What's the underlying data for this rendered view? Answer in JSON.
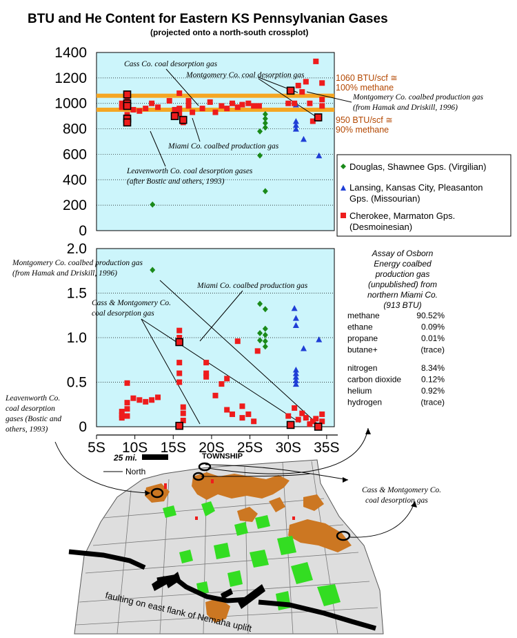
{
  "title": "BTU and He Content for Eastern KS Pennsylvanian Gases",
  "subtitle": "(projected onto a north-south crossplot)",
  "colors": {
    "plot_bg": "#ccf5fb",
    "orange": "#f5a623",
    "virgilian": "#1a8a1a",
    "missourian": "#1f3fd6",
    "desmoinesian": "#ee1c1c",
    "map_orange": "#cc7722",
    "map_green": "#33dd22"
  },
  "chart_data": [
    {
      "type": "scatter",
      "name": "btu",
      "ylim": [
        0,
        1400
      ],
      "xlim": [
        5,
        36
      ],
      "yticks": [
        "0",
        "200",
        "400",
        "600",
        "800",
        "1000",
        "1200",
        "1400"
      ],
      "ytick_values": [
        0,
        200,
        400,
        600,
        800,
        1000,
        1200,
        1400
      ],
      "grid": "dotted",
      "reference_lines": [
        {
          "y": 1060,
          "label": "1060 BTU/scf ≅\n100% methane"
        },
        {
          "y": 950,
          "label": "950 BTU/scf ≅\n90% methane"
        }
      ],
      "series": [
        {
          "name": "Douglas, Shawnee Gps. (Virgilian)",
          "marker": "diamond",
          "points": [
            [
              12.3,
              205
            ],
            [
              26.3,
              780
            ],
            [
              26.3,
              590
            ],
            [
              27,
              915
            ],
            [
              27,
              880
            ],
            [
              27,
              845
            ],
            [
              27,
              810
            ],
            [
              27,
              310
            ]
          ]
        },
        {
          "name": "Lansing, Kansas City, Pleasanton Gps. (Missourian)",
          "marker": "triangle",
          "points": [
            [
              31,
              990
            ],
            [
              31,
              860
            ],
            [
              31,
              830
            ],
            [
              31,
              800
            ],
            [
              32,
              720
            ],
            [
              34,
              590
            ]
          ]
        },
        {
          "name": "Cherokee, Marmaton Gps. (Desmoinesian)",
          "marker": "square",
          "points": [
            [
              8.3,
              1000
            ],
            [
              8.3,
              970
            ],
            [
              9,
              1060
            ],
            [
              9,
              1020
            ],
            [
              9,
              970
            ],
            [
              9,
              910
            ],
            [
              9,
              880
            ],
            [
              9,
              850
            ],
            [
              9.8,
              950
            ],
            [
              10.6,
              940
            ],
            [
              11.4,
              960
            ],
            [
              12.2,
              1000
            ],
            [
              13,
              970
            ],
            [
              14.5,
              1020
            ],
            [
              15.2,
              950
            ],
            [
              15.8,
              1080
            ],
            [
              15.8,
              960
            ],
            [
              15.8,
              920
            ],
            [
              16.3,
              880
            ],
            [
              16.3,
              850
            ],
            [
              17,
              1020
            ],
            [
              17,
              980
            ],
            [
              17.5,
              930
            ],
            [
              18.8,
              960
            ],
            [
              19.8,
              1010
            ],
            [
              20.5,
              930
            ],
            [
              21.3,
              980
            ],
            [
              22,
              960
            ],
            [
              22.7,
              1000
            ],
            [
              23.4,
              970
            ],
            [
              24,
              990
            ],
            [
              24.8,
              1000
            ],
            [
              25.5,
              980
            ],
            [
              26.2,
              980
            ],
            [
              30,
              1000
            ],
            [
              30.3,
              1100
            ],
            [
              30.8,
              1000
            ],
            [
              31.3,
              1140
            ],
            [
              31.8,
              1090
            ],
            [
              32.3,
              1170
            ],
            [
              32.8,
              1000
            ],
            [
              33.2,
              860
            ],
            [
              33.6,
              1330
            ],
            [
              33.9,
              880
            ],
            [
              34.4,
              1160
            ],
            [
              34.4,
              1030
            ],
            [
              34.4,
              980
            ]
          ]
        }
      ],
      "highlighted": [
        [
          9,
          1070
        ],
        [
          9,
          1000
        ],
        [
          9,
          980
        ],
        [
          9,
          880
        ],
        [
          9,
          850
        ],
        [
          15.2,
          900
        ],
        [
          16.3,
          870
        ],
        [
          30.3,
          1100
        ],
        [
          33.9,
          890
        ]
      ],
      "annotations": [
        "Cass Co. coal desorption gas",
        "Montgomery Co. coal desorption gas",
        "Montgomery Co. coalbed production gas",
        "(from Hamak and Driskill, 1996)",
        "Miami Co. coalbed production gas",
        "Leavenworth Co. coal desorption gases",
        "(after Bostic and others, 1993)"
      ]
    },
    {
      "type": "scatter",
      "name": "helium",
      "ylim": [
        0,
        2.0
      ],
      "xlim": [
        5,
        36
      ],
      "yticks": [
        "0",
        "0.5",
        "1.0",
        "1.5",
        "2.0"
      ],
      "ytick_values": [
        0,
        0.5,
        1.0,
        1.5,
        2.0
      ],
      "xticks": [
        "5S",
        "10S",
        "15S",
        "20S",
        "25S",
        "30S",
        "35S"
      ],
      "xtick_values": [
        5,
        10,
        15,
        20,
        25,
        30,
        35
      ],
      "xlabel": "TOWNSHIP",
      "grid": "dotted",
      "series": [
        {
          "name": "Douglas, Shawnee Gps. (Virgilian)",
          "marker": "diamond",
          "points": [
            [
              12.3,
              1.76
            ],
            [
              26.3,
              1.38
            ],
            [
              26.3,
              1.05
            ],
            [
              26.3,
              0.97
            ],
            [
              27,
              1.32
            ],
            [
              27,
              1.1
            ],
            [
              27,
              1.03
            ],
            [
              27,
              0.96
            ],
            [
              27,
              0.9
            ]
          ]
        },
        {
          "name": "Lansing, Kansas City, Pleasanton Gps. (Missourian)",
          "marker": "triangle",
          "points": [
            [
              30.8,
              1.33
            ],
            [
              31,
              1.22
            ],
            [
              31,
              1.14
            ],
            [
              31,
              0.64
            ],
            [
              31,
              0.6
            ],
            [
              31,
              0.56
            ],
            [
              31,
              0.52
            ],
            [
              31,
              0.48
            ],
            [
              32,
              0.88
            ],
            [
              34,
              0.98
            ]
          ]
        },
        {
          "name": "Cherokee, Marmaton Gps. (Desmoinesian)",
          "marker": "square",
          "points": [
            [
              8.3,
              0.17
            ],
            [
              8.3,
              0.13
            ],
            [
              8.3,
              0.1
            ],
            [
              9,
              0.49
            ],
            [
              9,
              0.27
            ],
            [
              9,
              0.2
            ],
            [
              9,
              0.12
            ],
            [
              9.8,
              0.32
            ],
            [
              10.6,
              0.3
            ],
            [
              11.4,
              0.28
            ],
            [
              12.2,
              0.3
            ],
            [
              13,
              0.33
            ],
            [
              15.8,
              1.08
            ],
            [
              15.8,
              1.0
            ],
            [
              15.8,
              0.72
            ],
            [
              15.8,
              0.6
            ],
            [
              15.8,
              0.5
            ],
            [
              16.3,
              0.22
            ],
            [
              16.3,
              0.15
            ],
            [
              16.3,
              0.07
            ],
            [
              19.3,
              0.72
            ],
            [
              19.3,
              0.6
            ],
            [
              19.3,
              0.56
            ],
            [
              20.5,
              0.35
            ],
            [
              21.3,
              0.48
            ],
            [
              22,
              0.54
            ],
            [
              22,
              0.19
            ],
            [
              22.7,
              0.14
            ],
            [
              23.4,
              0.96
            ],
            [
              24,
              0.23
            ],
            [
              24,
              0.1
            ],
            [
              24.8,
              0.14
            ],
            [
              25.5,
              0.06
            ],
            [
              26,
              0.85
            ],
            [
              30,
              0.12
            ],
            [
              30.8,
              0.21
            ],
            [
              31.3,
              0.08
            ],
            [
              31.8,
              0.15
            ],
            [
              32.3,
              0.1
            ],
            [
              32.8,
              0.03
            ],
            [
              33.2,
              0.06
            ],
            [
              33.6,
              0.09
            ],
            [
              34.4,
              0.14
            ],
            [
              34.4,
              0.06
            ]
          ]
        }
      ],
      "highlighted": [
        [
          15.8,
          0.95
        ],
        [
          15.8,
          0.01
        ],
        [
          30.3,
          0.02
        ],
        [
          33.9,
          0.0
        ]
      ],
      "annotations": [
        "Montgomery Co. coalbed production gas",
        "(from Hamak and Driskill, 1996)",
        "Miami Co. coalbed production gas",
        "Cass & Montgomery Co.",
        "coal desorption gas",
        "Leavenworth Co.",
        "coal desorption",
        "gases (Bostic and",
        "others, 1993)"
      ]
    }
  ],
  "legend": [
    "Douglas, Shawnee Gps. (Virgilian)",
    "Lansing, Kansas City, Pleasanton",
    "Gps. (Missourian)",
    "Cherokee, Marmaton Gps.",
    "(Desmoinesian)"
  ],
  "assay": {
    "title_lines": [
      "Assay of Osborn",
      "Energy coalbed",
      "production gas",
      "(unpublished) from",
      "northern Miami Co.",
      "(913 BTU)"
    ],
    "rows": [
      {
        "name": "methane",
        "value": "90.52%"
      },
      {
        "name": "ethane",
        "value": "0.09%"
      },
      {
        "name": "propane",
        "value": "0.01%"
      },
      {
        "name": "butane+",
        "value": "(trace)"
      },
      {
        "name": "nitrogen",
        "value": "8.34%"
      },
      {
        "name": "carbon dioxide",
        "value": "0.12%"
      },
      {
        "name": "helium",
        "value": "0.92%"
      },
      {
        "name": "hydrogen",
        "value": "(trace)"
      }
    ]
  },
  "map": {
    "scale_label": "25 mi.",
    "north_label": "North",
    "fault_label": "faulting on east flank of Nemaha uplift",
    "callout": [
      "Cass & Montgomery Co.",
      "coal desorption gas"
    ]
  }
}
